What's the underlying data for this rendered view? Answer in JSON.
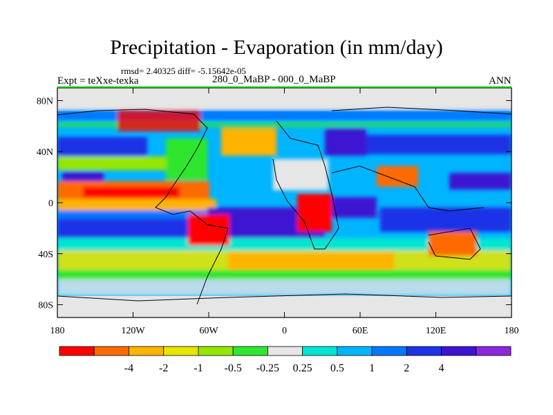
{
  "title": "Precipitation - Evaporation (in mm/day)",
  "stats": "rmsd= 2.40325 diff= -5.15642e-05",
  "left_label": "Expt = teXxe-texka",
  "center_label": "280_0_MaBP - 000_0_MaBP",
  "right_label": "ANN",
  "axes": {
    "y_ticks": [
      {
        "label": "80N",
        "lat": 80
      },
      {
        "label": "40N",
        "lat": 40
      },
      {
        "label": "0",
        "lat": 0
      },
      {
        "label": "40S",
        "lat": -40
      },
      {
        "label": "80S",
        "lat": -80
      }
    ],
    "x_ticks": [
      {
        "label": "180",
        "lon": -180
      },
      {
        "label": "120W",
        "lon": -120
      },
      {
        "label": "60W",
        "lon": -60
      },
      {
        "label": "0",
        "lon": 0
      },
      {
        "label": "60E",
        "lon": 60
      },
      {
        "label": "120E",
        "lon": 120
      },
      {
        "label": "180",
        "lon": 180
      }
    ]
  },
  "colorbar": {
    "colors": [
      "#ff0000",
      "#ff6a00",
      "#ffb400",
      "#e6e600",
      "#96e600",
      "#2fe62f",
      "#e6e6e6",
      "#00e6d2",
      "#00b4ff",
      "#0078ff",
      "#1e32e6",
      "#3c14d2",
      "#8c28dc"
    ],
    "labels": [
      "-4",
      "-2",
      "-1",
      "-0.5",
      "-0.25",
      "0.25",
      "0.5",
      "1",
      "2",
      "4"
    ]
  }
}
